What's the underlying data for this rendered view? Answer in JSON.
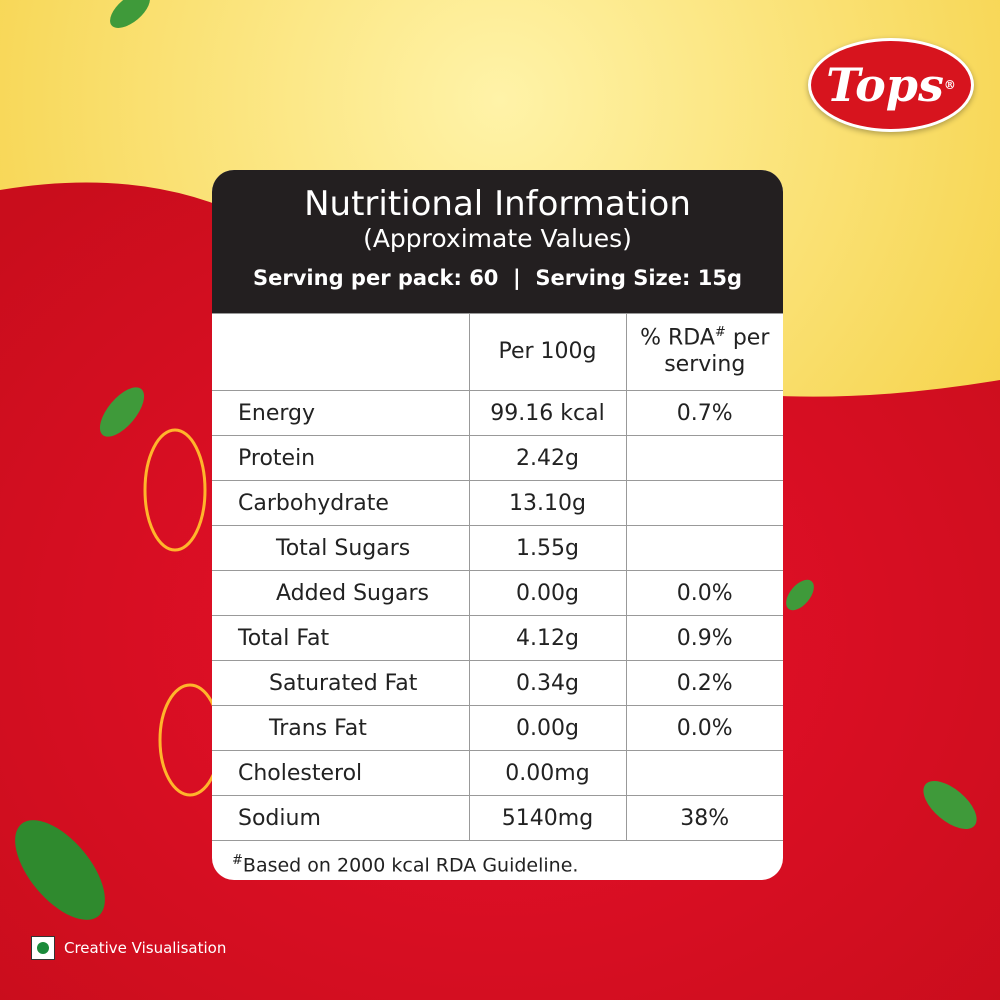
{
  "brand": {
    "name": "Tops",
    "mark": "®"
  },
  "header": {
    "title": "Nutritional Information",
    "subtitle": "(Approximate Values)",
    "serving": "Serving per pack: 60  |  Serving Size: 15g"
  },
  "table": {
    "columns": [
      {
        "text": "Per 100g"
      },
      {
        "text": "% RDA",
        "mark": "#",
        "rest": "per serving"
      }
    ],
    "rows": [
      {
        "name": "Energy",
        "per100g": "99.16 kcal",
        "rda": "0.7%"
      },
      {
        "name": "Protein",
        "per100g": "2.42g"
      },
      {
        "name": "Carbohydrate",
        "per100g": "13.10g",
        "children": [
          {
            "name": "Total Sugars",
            "per100g": "1.55g"
          },
          {
            "name": "Added Sugars",
            "per100g": "0.00g",
            "rda": "0.0%"
          }
        ]
      },
      {
        "name": "Total Fat",
        "per100g": "4.12g",
        "rda": "0.9%",
        "children": [
          {
            "name": "Saturated Fat",
            "per100g": "0.34g",
            "rda": "0.2%"
          },
          {
            "name": "Trans Fat",
            "per100g": "0.00g",
            "rda": "0.0%"
          }
        ]
      },
      {
        "name": "Cholesterol",
        "per100g": "0.00mg"
      },
      {
        "name": "Sodium",
        "per100g": "5140mg",
        "rda": "38%"
      }
    ],
    "footnote": {
      "mark": "#",
      "text": "Based on 2000 kcal RDA Guideline."
    }
  },
  "badge": "Creative Visualisation"
}
